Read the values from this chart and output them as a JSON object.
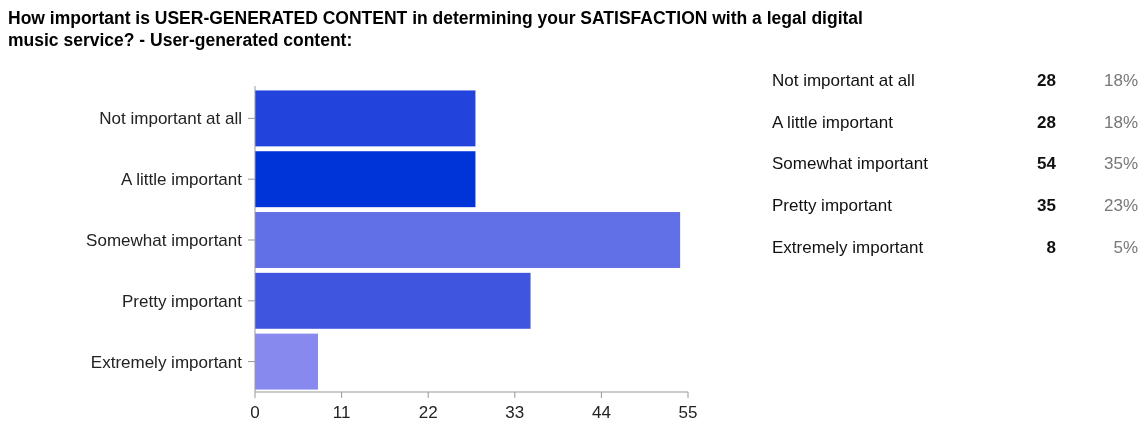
{
  "chart_data": [
    {
      "type": "bar",
      "orientation": "horizontal",
      "title": "How important is USER-GENERATED CONTENT in determining your SATISFACTION with a legal digital music service? - User-generated content:",
      "categories": [
        "Not important at all",
        "A little important",
        "Somewhat important",
        "Pretty important",
        "Extremely important"
      ],
      "values": [
        28,
        28,
        54,
        35,
        8
      ],
      "colors": [
        "#2244dd",
        "#0033d8",
        "#6170e6",
        "#4055df",
        "#8789ee"
      ],
      "xlim": [
        0,
        55
      ],
      "xticks": [
        0,
        11,
        22,
        33,
        44,
        55
      ]
    },
    {
      "type": "other",
      "annotations": [
        "Not important at all",
        "28",
        "18%",
        "A little important",
        "28",
        "18%",
        "Somewhat important",
        "54",
        "35%",
        "Pretty important",
        "35",
        "23%",
        "Extremely important",
        "8",
        "5%"
      ]
    }
  ]
}
